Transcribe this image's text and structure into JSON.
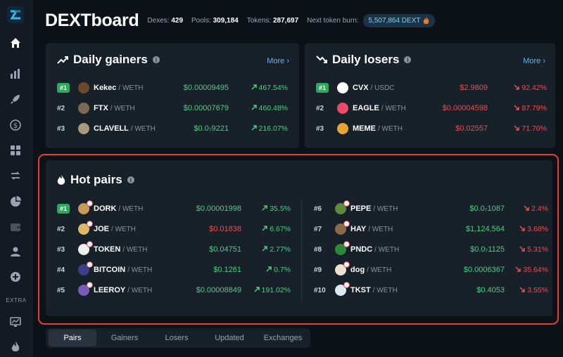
{
  "header": {
    "title": "DEXTboard",
    "dexes_label": "Dexes:",
    "dexes_value": "429",
    "pools_label": "Pools:",
    "pools_value": "309,184",
    "tokens_label": "Tokens:",
    "tokens_value": "287,697",
    "burn_label": "Next token burn:",
    "burn_value": "5,507,864 DEXT"
  },
  "sidebar": {
    "extra_label": "EXTRA",
    "icons": [
      "home-icon",
      "chart-icon",
      "rocket-icon",
      "dollar-icon",
      "apps-icon",
      "swap-icon",
      "pie-icon",
      "wallet-icon",
      "user-icon",
      "plus-icon",
      "monitor-icon",
      "fire-icon"
    ]
  },
  "gainers": {
    "title": "Daily gainers",
    "more": "More",
    "rows": [
      {
        "rank": "#1",
        "symbol": "Kekec",
        "quote": "/ WETH",
        "price": "$0.00009495",
        "change": "467.54%",
        "icon_color": "#6b4a2b"
      },
      {
        "rank": "#2",
        "symbol": "FTX",
        "quote": "/ WETH",
        "price": "$0.00007679",
        "change": "460.48%",
        "icon_color": "#7a6a55"
      },
      {
        "rank": "#3",
        "symbol": "CLAVELL",
        "quote": "/ WETH",
        "price": "$0.0₇9221",
        "change": "216.07%",
        "icon_color": "#a89880"
      }
    ]
  },
  "losers": {
    "title": "Daily losers",
    "more": "More",
    "rows": [
      {
        "rank": "#1",
        "symbol": "CVX",
        "quote": "/ USDC",
        "price": "$2.9809",
        "change": "92.42%",
        "icon_color": "#ffffff"
      },
      {
        "rank": "#2",
        "symbol": "EAGLE",
        "quote": "/ WETH",
        "price": "$0.00004598",
        "change": "87.79%",
        "icon_color": "#e94c6b"
      },
      {
        "rank": "#3",
        "symbol": "MEME",
        "quote": "/ WETH",
        "price": "$0.02557",
        "change": "71.70%",
        "icon_color": "#e8a630"
      }
    ]
  },
  "hot": {
    "title": "Hot pairs",
    "left": [
      {
        "rank": "#1",
        "symbol": "DORK",
        "quote": "/ WETH",
        "price": "$0.00001998",
        "price_color": "green",
        "change": "35.5%",
        "dir": "up",
        "icon_color": "#c79a5a"
      },
      {
        "rank": "#2",
        "symbol": "JOE",
        "quote": "/ WETH",
        "price": "$0.01838",
        "price_color": "red",
        "change": "6.67%",
        "dir": "up",
        "icon_color": "#e0b86a"
      },
      {
        "rank": "#3",
        "symbol": "TOKEN",
        "quote": "/ WETH",
        "price": "$0.04751",
        "price_color": "green",
        "change": "2.77%",
        "dir": "up",
        "icon_color": "#f0f0f0"
      },
      {
        "rank": "#4",
        "symbol": "BITCOIN",
        "quote": "/ WETH",
        "price": "$0.1261",
        "price_color": "green",
        "change": "0.7%",
        "dir": "up",
        "icon_color": "#3a3f8a"
      },
      {
        "rank": "#5",
        "symbol": "LEEROY",
        "quote": "/ WETH",
        "price": "$0.00008849",
        "price_color": "green",
        "change": "191.02%",
        "dir": "up",
        "icon_color": "#7a5ab8"
      }
    ],
    "right": [
      {
        "rank": "#6",
        "symbol": "PEPE",
        "quote": "/ WETH",
        "price": "$0.0₇1087",
        "price_color": "green",
        "change": "2.4%",
        "dir": "down",
        "icon_color": "#5a8a3a"
      },
      {
        "rank": "#7",
        "symbol": "HAY",
        "quote": "/ WETH",
        "price": "$1,124,564",
        "price_color": "green",
        "change": "3.68%",
        "dir": "down",
        "icon_color": "#8a6a4a"
      },
      {
        "rank": "#8",
        "symbol": "PNDC",
        "quote": "/ WETH",
        "price": "$0.0₇1125",
        "price_color": "green",
        "change": "5.31%",
        "dir": "down",
        "icon_color": "#2a8a3a"
      },
      {
        "rank": "#9",
        "symbol": "dog",
        "quote": "/ WETH",
        "price": "$0.0006367",
        "price_color": "green",
        "change": "35.64%",
        "dir": "down",
        "icon_color": "#e8e2d0"
      },
      {
        "rank": "#10",
        "symbol": "TKST",
        "quote": "/ WETH",
        "price": "$0.4053",
        "price_color": "green",
        "change": "3.55%",
        "dir": "down",
        "icon_color": "#dfe9f5"
      }
    ]
  },
  "tabs": [
    {
      "label": "Pairs",
      "active": true
    },
    {
      "label": "Gainers",
      "active": false
    },
    {
      "label": "Losers",
      "active": false
    },
    {
      "label": "Updated",
      "active": false
    },
    {
      "label": "Exchanges",
      "active": false
    }
  ]
}
